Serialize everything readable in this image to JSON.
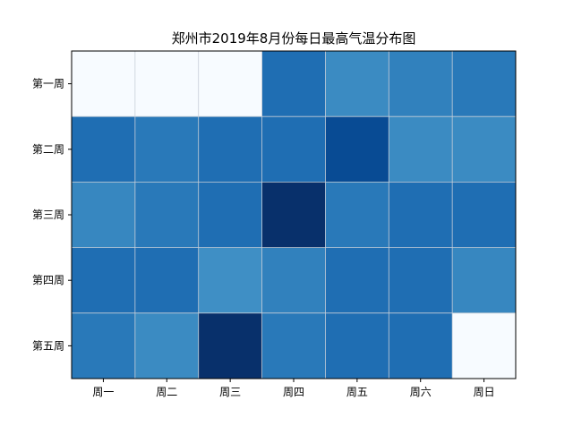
{
  "chart_data": {
    "type": "heatmap",
    "title": "郑州市2019年8月份每日最高气温分布图",
    "xlabel": "",
    "ylabel": "",
    "x_categories": [
      "周一",
      "周二",
      "周三",
      "周四",
      "周五",
      "周六",
      "周日"
    ],
    "y_categories": [
      "第一周",
      "第二周",
      "第三周",
      "第四周",
      "第五周"
    ],
    "colormap": "Blues",
    "value_range": [
      0,
      38
    ],
    "values": [
      [
        0,
        0,
        0,
        35,
        31,
        33,
        34
      ],
      [
        35,
        34,
        35,
        35,
        37,
        31,
        31
      ],
      [
        32,
        34,
        35,
        38,
        34,
        35,
        35
      ],
      [
        35,
        35,
        29,
        33,
        35,
        35,
        32
      ],
      [
        34,
        31,
        38,
        34,
        35,
        35,
        0
      ]
    ],
    "grid": true,
    "grid_color": "#c8cfd8",
    "legend": "none"
  }
}
